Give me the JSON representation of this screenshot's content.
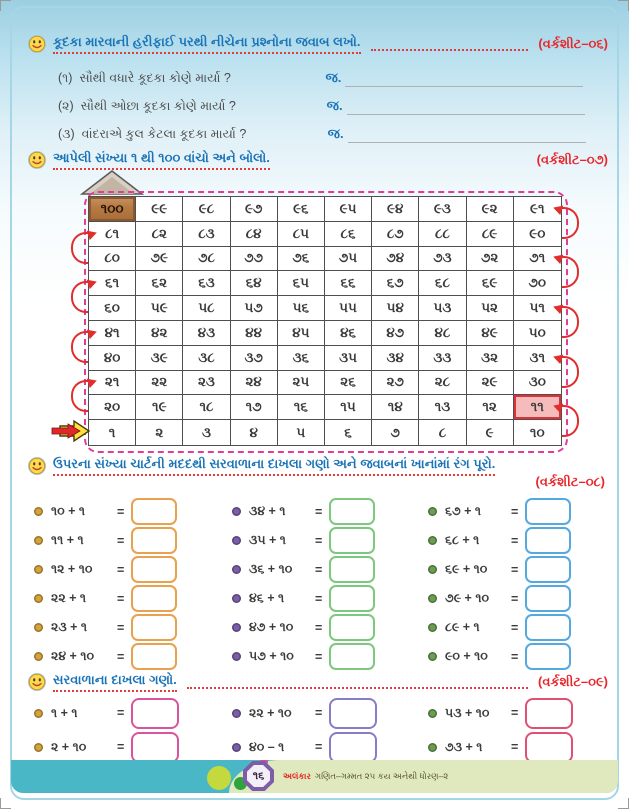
{
  "common": {
    "answer_prefix": "જ.",
    "eq_sign": "="
  },
  "colors": {
    "header_blue": "#1b74b8",
    "worksheet_red": "#e8262c",
    "grid_dashed_border": "#e23c9b",
    "highlight_cell_fill": "#f6bcbc",
    "footer_teal": "#49b7c6",
    "footer_green": "#e0e9bd"
  },
  "ws06": {
    "title": "કૂદકા મારવાની હરીફાઈ પરથી નીચેના પ્રશ્નોના જવાબ લખો.",
    "label": "(વર્કશીટ–૦૬)",
    "questions": [
      {
        "no": "(૧)",
        "text": "સૌથી વધારે કૂદકા કોણે માર્યા ?"
      },
      {
        "no": "(૨)",
        "text": "સૌથી ઓછા કૂદકા કોણે માર્યા ?"
      },
      {
        "no": "(૩)",
        "text": "વાંદરાએ કુલ કેટલા કૂદકા માર્યા ?"
      }
    ]
  },
  "ws07": {
    "title": "આપેલી સંખ્યા ૧ થી ૧૦૦ વાંચો અને બોલો.",
    "label": "(વર્કશીટ–૦૭)",
    "highlight_value": "૧૧",
    "grid_rows": [
      [
        "૧૦૦",
        "૯૯",
        "૯૮",
        "૯૭",
        "૯૬",
        "૯૫",
        "૯૪",
        "૯૩",
        "૯૨",
        "૯૧"
      ],
      [
        "૮૧",
        "૮૨",
        "૮૩",
        "૮૪",
        "૮૫",
        "૮૬",
        "૮૭",
        "૮૮",
        "૮૯",
        "૯૦"
      ],
      [
        "૮૦",
        "૭૯",
        "૭૮",
        "૭૭",
        "૭૬",
        "૭૫",
        "૭૪",
        "૭૩",
        "૭૨",
        "૭૧"
      ],
      [
        "૬૧",
        "૬૨",
        "૬૩",
        "૬૪",
        "૬૫",
        "૬૬",
        "૬૭",
        "૬૮",
        "૬૯",
        "૭૦"
      ],
      [
        "૬૦",
        "૫૯",
        "૫૮",
        "૫૭",
        "૫૬",
        "૫૫",
        "૫૪",
        "૫૩",
        "૫૨",
        "૫૧"
      ],
      [
        "૪૧",
        "૪૨",
        "૪૩",
        "૪૪",
        "૪૫",
        "૪૬",
        "૪૭",
        "૪૮",
        "૪૯",
        "૫૦"
      ],
      [
        "૪૦",
        "૩૯",
        "૩૮",
        "૩૭",
        "૩૬",
        "૩૫",
        "૩૪",
        "૩૩",
        "૩૨",
        "૩૧"
      ],
      [
        "૨૧",
        "૨૨",
        "૨૩",
        "૨૪",
        "૨૫",
        "૨૬",
        "૨૭",
        "૨૮",
        "૨૯",
        "૩૦"
      ],
      [
        "૨૦",
        "૧૯",
        "૧૮",
        "૧૭",
        "૧૬",
        "૧૫",
        "૧૪",
        "૧૩",
        "૧૨",
        "૧૧"
      ],
      [
        "૧",
        "૨",
        "૩",
        "૪",
        "૫",
        "૬",
        "૭",
        "૮",
        "૯",
        "૧૦"
      ]
    ]
  },
  "ws08": {
    "title": "ઉપરના સંખ્યા ચાર્ટની મદદથી સરવાળાના દાખલા ગણો અને જવાબનાં ખાનાંમાં રંગ પૂરો.",
    "label": "(વર્કશીટ–૦૮)",
    "columns": [
      {
        "bullet_color": "#d4a33c",
        "box_color": "#e8a14e",
        "problems": [
          "૧૦ + ૧",
          "૧૧ + ૧",
          "૧૨ + ૧૦",
          "૨૨ + ૧",
          "૨૩ + ૧",
          "૨૪ + ૧૦"
        ]
      },
      {
        "bullet_color": "#7a5fa8",
        "box_color": "#7cc87c",
        "problems": [
          "૩૪ + ૧",
          "૩૫ + ૧",
          "૩૬ + ૧૦",
          "૪૬ + ૧",
          "૪૭ + ૧૦",
          "૫૭ + ૧૦"
        ]
      },
      {
        "bullet_color": "#6b9d53",
        "box_color": "#55a9df",
        "problems": [
          "૬૭ + ૧",
          "૬૮ + ૧",
          "૬૯ + ૧૦",
          "૭૯ + ૧૦",
          "૮૯ + ૧",
          "૯૦ + ૧૦"
        ]
      }
    ]
  },
  "ws09": {
    "title": "સરવાળાના દાખલા ગણો.",
    "label": "(વર્કશીટ–૦૯)",
    "columns": [
      {
        "bullet_color": "#d4a33c",
        "box_color": "#d9549c",
        "problems": [
          "૧ + ૧",
          "૨ + ૧૦"
        ]
      },
      {
        "bullet_color": "#7a5fa8",
        "box_color": "#8a7cc4",
        "problems": [
          "૨૨ + ૧૦",
          "૪૦ – ૧"
        ]
      },
      {
        "bullet_color": "#6b9d53",
        "box_color": "#df5072",
        "problems": [
          "૫૩ + ૧૦",
          "૭૩ + ૧"
        ]
      }
    ]
  },
  "footer": {
    "page_number": "૧૬",
    "caption_red": "અલંકાર",
    "caption_rest": "ગણિત–ગમ્મત ૨૫ કય અનેથી ધોરણ–૨"
  }
}
